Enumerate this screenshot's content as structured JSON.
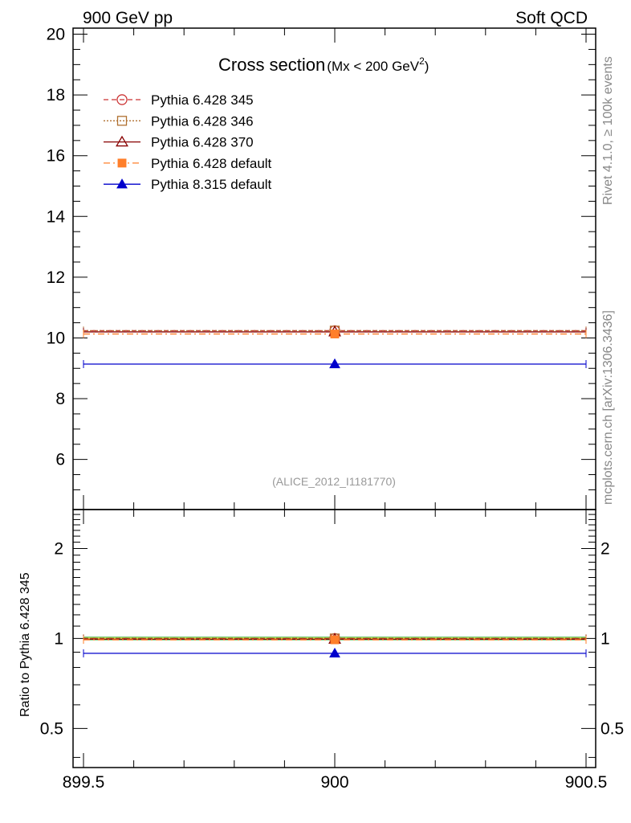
{
  "header": {
    "left": "900 GeV pp",
    "right": "Soft QCD"
  },
  "side_labels": {
    "rivet": "Rivet 4.1.0, ≥ 100k events",
    "mcplots": "mcplots.cern.ch [arXiv:1306.3436]"
  },
  "chart_data": {
    "type": "scatter",
    "title": "Cross section",
    "title_sub": "(Mx < 200 GeV",
    "title_sup": "2",
    "title_close": ")",
    "watermark": "(ALICE_2012_I1181770)",
    "x_range": [
      899.5,
      900.5
    ],
    "x_ticks": [
      899.5,
      900,
      900.5
    ],
    "x_tick_labels": [
      "899.5",
      "900",
      "900.5"
    ],
    "main": {
      "ylim": [
        4.35,
        20.2
      ],
      "y_ticks": [
        6,
        8,
        10,
        12,
        14,
        16,
        18,
        20
      ],
      "y_tick_labels": [
        "6",
        "8",
        "10",
        "12",
        "14",
        "16",
        "18",
        "20"
      ]
    },
    "ratio": {
      "ylabel": "Ratio to Pythia 6.428 345",
      "ylim": [
        0.37,
        2.7
      ],
      "log": true,
      "y_ticks": [
        0.5,
        1,
        2
      ],
      "y_tick_labels": [
        "0.5",
        "1",
        "2"
      ],
      "band": [
        0.99,
        1.01
      ]
    },
    "series": [
      {
        "name": "Pythia 6.428 345",
        "color": "#cc3333",
        "dash": "6,4",
        "marker": "circle-open",
        "x": 900,
        "y": 10.24,
        "ratio": 1.0
      },
      {
        "name": "Pythia 6.428 346",
        "color": "#b07030",
        "dash": "2,2",
        "marker": "square-open",
        "x": 900,
        "y": 10.24,
        "ratio": 1.0
      },
      {
        "name": "Pythia 6.428 370",
        "color": "#880000",
        "dash": "",
        "marker": "triangle-open",
        "x": 900,
        "y": 10.2,
        "ratio": 0.995
      },
      {
        "name": "Pythia 6.428 default",
        "color": "#ff7f2a",
        "dash": "8,4,2,4",
        "marker": "square-filled",
        "x": 900,
        "y": 10.13,
        "ratio": 0.99
      },
      {
        "name": "Pythia 8.315 default",
        "color": "#0000cc",
        "dash": "",
        "marker": "triangle-filled",
        "x": 900,
        "y": 9.14,
        "ratio": 0.892
      }
    ]
  }
}
